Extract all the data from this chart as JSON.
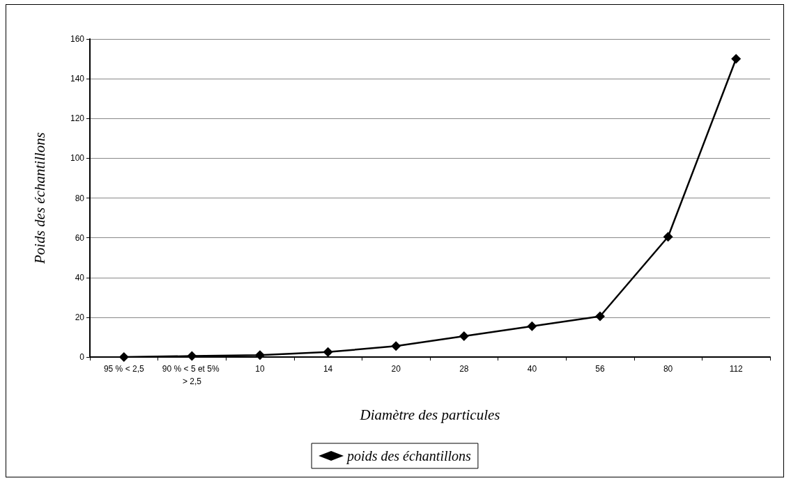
{
  "chart_data": {
    "type": "line",
    "xlabel": "Diamètre des particules",
    "ylabel": "Poids des échantillons",
    "categories": [
      "95 % < 2,5",
      "90 % < 5 et 5% > 2,5",
      "10",
      "14",
      "20",
      "28",
      "40",
      "56",
      "80",
      "112"
    ],
    "series": [
      {
        "name": "poids des échantillons",
        "color": "#000000",
        "values": [
          0,
          0.5,
          1,
          2.5,
          5.5,
          10.5,
          15.5,
          20.5,
          60.5,
          150
        ]
      }
    ],
    "ylim": [
      0,
      160
    ],
    "yticks": [
      0,
      20,
      40,
      60,
      80,
      100,
      120,
      140,
      160
    ],
    "grid": "y",
    "legend": "bottom",
    "marker": "diamond",
    "line_style": "solid"
  }
}
